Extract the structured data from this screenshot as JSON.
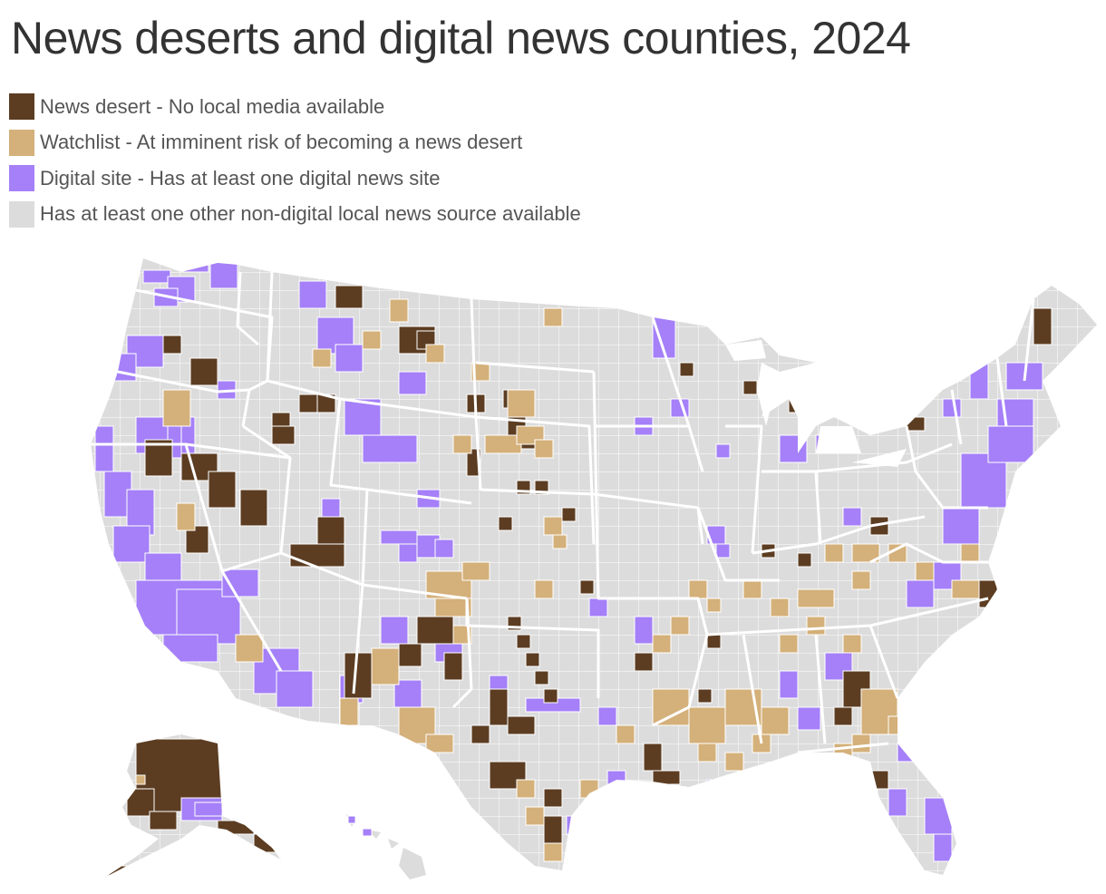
{
  "title": "News deserts and digital news counties, 2024",
  "legend": [
    {
      "label": "News desert - No local media available",
      "color": "#5c3d22",
      "category": "news-desert"
    },
    {
      "label": "Watchlist - At imminent risk of becoming a news desert",
      "color": "#d4b07a",
      "category": "watchlist"
    },
    {
      "label": "Digital site - Has at least one digital news site",
      "color": "#a580f8",
      "category": "digital-site"
    },
    {
      "label": "Has at least one other non-digital local news source available",
      "color": "#dcdcdc",
      "category": "other-source"
    }
  ],
  "colors": {
    "background": "#ffffff",
    "county_base": "#dcdcdc",
    "county_border": "#ffffff",
    "news_desert": "#5c3d22",
    "watchlist": "#d4b07a",
    "digital_site": "#a580f8"
  },
  "map": {
    "projection": "albers-usa",
    "regions": [
      "Contiguous United States",
      "Alaska",
      "Hawaii"
    ],
    "unit": "county"
  }
}
